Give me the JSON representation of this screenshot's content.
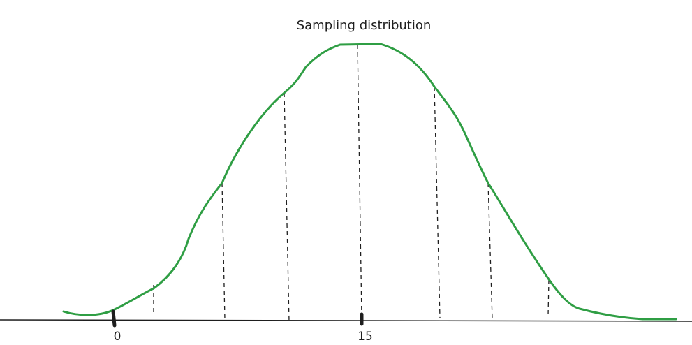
{
  "diagram": {
    "title": "Sampling distribution",
    "curve_color": "#2f9e44",
    "ink_color": "#1e1e1e",
    "tick_labels": [
      "0",
      "15"
    ]
  }
}
